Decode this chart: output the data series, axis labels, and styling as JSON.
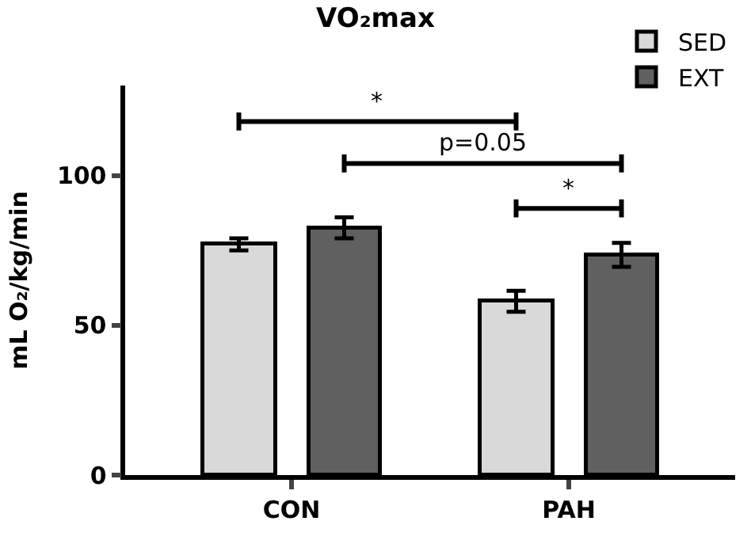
{
  "chart_data": {
    "type": "bar",
    "title": "VO₂max",
    "ylabel": "mL O₂/kg/min",
    "categories": [
      "CON",
      "PAH"
    ],
    "series": [
      {
        "name": "SED",
        "color": "#d9d9d9",
        "values": [
          77,
          58
        ],
        "errors": [
          2,
          3.5
        ]
      },
      {
        "name": "EXT",
        "color": "#606060",
        "values": [
          82.5,
          73.5
        ],
        "errors": [
          3.5,
          4
        ]
      }
    ],
    "ylim": [
      0,
      130
    ],
    "yticks": [
      0,
      50,
      100
    ],
    "grid": false,
    "legend": "top right",
    "annotations": [
      "*",
      "p=0.05",
      "*"
    ]
  }
}
